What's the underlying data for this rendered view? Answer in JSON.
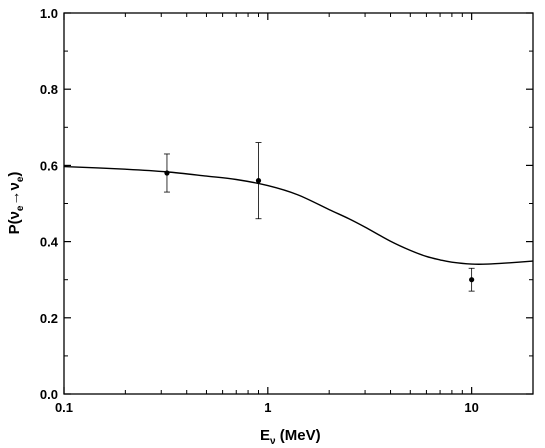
{
  "chart_data": {
    "type": "scatter",
    "xscale": "log",
    "xlim": [
      0.1,
      20
    ],
    "ylim": [
      0.0,
      1.0
    ],
    "xticks": [
      0.1,
      1,
      10
    ],
    "xtick_labels": [
      "0.1",
      "1",
      "10"
    ],
    "yticks": [
      0.0,
      0.2,
      0.4,
      0.6,
      0.8,
      1.0
    ],
    "ytick_labels": [
      "0.0",
      "0.2",
      "0.4",
      "0.6",
      "0.8",
      "1.0"
    ],
    "xlabel": {
      "main": "E",
      "sub": "ν",
      "rest": " (MeV)"
    },
    "ylabel": {
      "p": "P(",
      "nu1": "ν",
      "sub1": "e",
      "arrow": "→",
      "nu2": "ν",
      "sub2": "e",
      "close": ")"
    },
    "grid": false,
    "series": [
      {
        "kind": "data-with-error-bars",
        "points": [
          {
            "x": 0.32,
            "y": 0.58,
            "yerr_low": 0.53,
            "yerr_high": 0.63
          },
          {
            "x": 0.9,
            "y": 0.56,
            "yerr_low": 0.46,
            "yerr_high": 0.66
          },
          {
            "x": 10,
            "y": 0.3,
            "yerr_low": 0.27,
            "yerr_high": 0.33
          }
        ]
      },
      {
        "kind": "curve",
        "x": [
          0.1,
          0.2,
          0.32,
          0.5,
          0.7,
          1.0,
          1.4,
          2.0,
          2.5,
          3.0,
          4.0,
          5.0,
          6.0,
          7.0,
          8.0,
          10.0,
          12.0,
          15.0,
          20.0
        ],
        "y": [
          0.597,
          0.59,
          0.583,
          0.572,
          0.563,
          0.547,
          0.523,
          0.484,
          0.46,
          0.438,
          0.401,
          0.377,
          0.361,
          0.352,
          0.346,
          0.341,
          0.341,
          0.344,
          0.349
        ]
      }
    ]
  }
}
